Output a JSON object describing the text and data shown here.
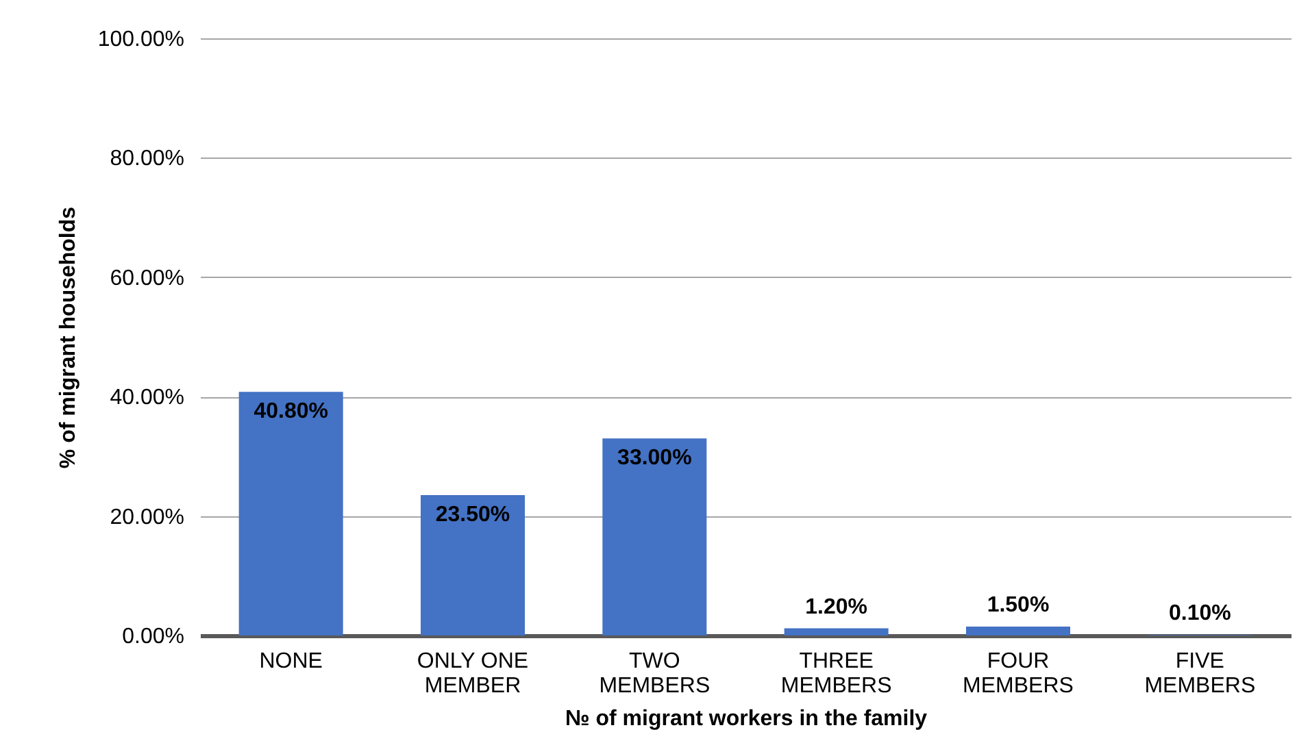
{
  "chart_data": {
    "type": "bar",
    "categories": [
      "NONE",
      "ONLY ONE MEMBER",
      "TWO MEMBERS",
      "THREE MEMBERS",
      "FOUR MEMBERS",
      "FIVE MEMBERS"
    ],
    "values": [
      40.8,
      23.5,
      33.0,
      1.2,
      1.5,
      0.1
    ],
    "value_labels": [
      "40.80%",
      "23.50%",
      "33.00%",
      "1.20%",
      "1.50%",
      "0.10%"
    ],
    "color": "#4472c4",
    "xlabel": "№ of migrant workers in the family",
    "ylabel": "% of migrant households",
    "ylim": [
      0,
      100
    ],
    "yticks": [
      {
        "value": 0,
        "label": "0.00%"
      },
      {
        "value": 20,
        "label": "20.00%"
      },
      {
        "value": 40,
        "label": "40.00%"
      },
      {
        "value": 60,
        "label": "60.00%"
      },
      {
        "value": 80,
        "label": "80.00%"
      },
      {
        "value": 100,
        "label": "100.00%"
      }
    ],
    "grid": "y"
  }
}
